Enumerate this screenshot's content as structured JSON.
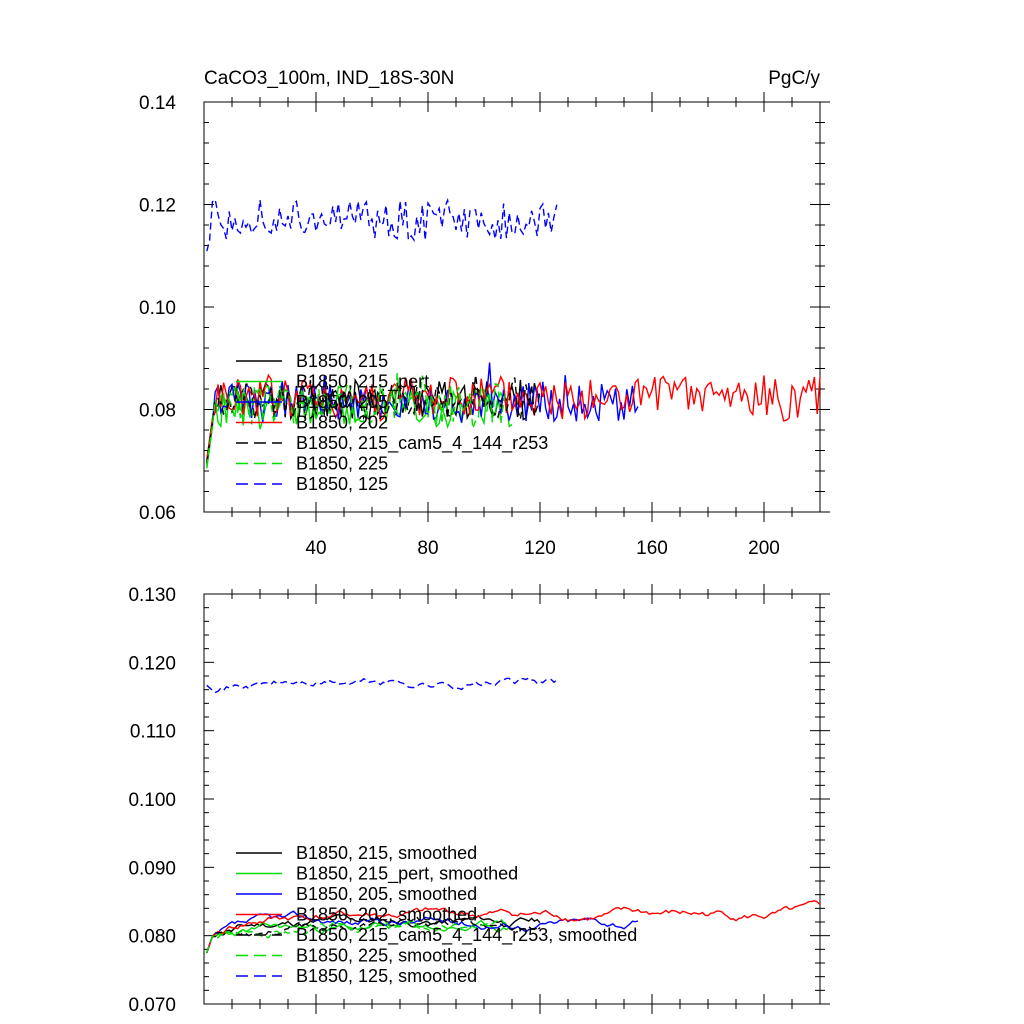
{
  "chart_data": [
    {
      "type": "line",
      "title": "CaCO3_100m, IND_18S-30N",
      "units": "PgC/y",
      "xlim": [
        0,
        220
      ],
      "ylim": [
        0.06,
        0.14
      ],
      "xticks": [
        40,
        80,
        120,
        160,
        200
      ],
      "yticks": [
        0.06,
        0.08,
        0.1,
        0.12,
        0.14
      ],
      "ytick_labels": [
        "0.06",
        "0.08",
        "0.10",
        "0.12",
        "0.14"
      ],
      "series": [
        {
          "name": "B1850, 215",
          "color": "#000000",
          "dash": "solid",
          "n": 120,
          "base": 0.082,
          "amp": 0.004,
          "seed": 11
        },
        {
          "name": "B1850, 215_pert",
          "color": "#00dd00",
          "dash": "solid",
          "n": 110,
          "base": 0.0805,
          "amp": 0.004,
          "seed": 23
        },
        {
          "name": "B1850, 205",
          "color": "#0000ff",
          "dash": "solid",
          "n": 155,
          "base": 0.0815,
          "amp": 0.004,
          "seed": 37
        },
        {
          "name": "B1850, 202",
          "color": "#ff0000",
          "dash": "solid",
          "n": 220,
          "base": 0.0822,
          "amp": 0.0045,
          "seed": 41
        },
        {
          "name": "B1850, 215_cam5_4_144_r253",
          "color": "#000000",
          "dash": "dashed",
          "n": 120,
          "base": 0.0815,
          "amp": 0.0035,
          "seed": 53
        },
        {
          "name": "B1850, 225",
          "color": "#00dd00",
          "dash": "dashed",
          "n": 108,
          "base": 0.081,
          "amp": 0.004,
          "seed": 67
        },
        {
          "name": "B1850, 125",
          "color": "#0000ff",
          "dash": "dashed",
          "n": 126,
          "base": 0.117,
          "amp": 0.004,
          "seed": 71
        }
      ]
    },
    {
      "type": "line",
      "title": "",
      "xlim": [
        0,
        220
      ],
      "ylim": [
        0.07,
        0.13
      ],
      "xticks": [
        40,
        80,
        120,
        160,
        200
      ],
      "yticks": [
        0.07,
        0.08,
        0.09,
        0.1,
        0.11,
        0.12,
        0.13
      ],
      "ytick_labels": [
        "0.070",
        "0.080",
        "0.090",
        "0.100",
        "0.110",
        "0.120",
        "0.130"
      ],
      "series": [
        {
          "name": "B1850, 215, smoothed",
          "color": "#000000",
          "dash": "solid",
          "n": 120,
          "base": 0.082,
          "amp": 0.0012,
          "seed": 11
        },
        {
          "name": "B1850, 215_pert, smoothed",
          "color": "#00dd00",
          "dash": "solid",
          "n": 110,
          "base": 0.081,
          "amp": 0.0012,
          "seed": 23
        },
        {
          "name": "B1850, 205, smoothed",
          "color": "#0000ff",
          "dash": "solid",
          "n": 155,
          "base": 0.082,
          "amp": 0.001,
          "seed": 37
        },
        {
          "name": "B1850, 202, smoothed",
          "color": "#ff0000",
          "dash": "solid",
          "n": 220,
          "base": 0.083,
          "amp": 0.001,
          "seed": 41
        },
        {
          "name": "B1850, 215_cam5_4_144_r253, smoothed",
          "color": "#000000",
          "dash": "dashed",
          "n": 120,
          "base": 0.0815,
          "amp": 0.001,
          "seed": 53
        },
        {
          "name": "B1850, 225, smoothed",
          "color": "#00dd00",
          "dash": "dashed",
          "n": 108,
          "base": 0.0812,
          "amp": 0.0012,
          "seed": 67
        },
        {
          "name": "B1850, 125, smoothed",
          "color": "#0000ff",
          "dash": "dashed",
          "n": 126,
          "base": 0.117,
          "amp": 0.0018,
          "seed": 71
        }
      ]
    }
  ]
}
